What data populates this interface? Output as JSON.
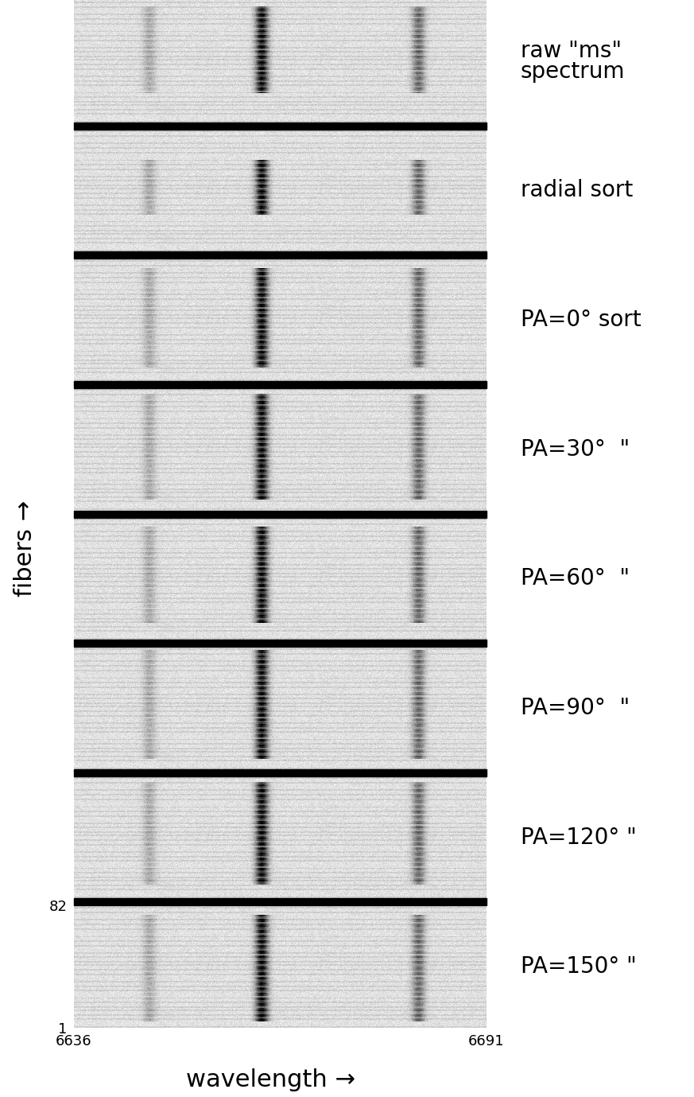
{
  "chart_data": {
    "type": "image_stack",
    "x_label": "wavelength →",
    "y_label": "fibers →",
    "xlim": [
      6636,
      6691
    ],
    "xticks": [
      6636,
      6691
    ],
    "ylim": [
      1,
      82
    ],
    "yticks": [
      1,
      82
    ],
    "lines": [
      {
        "wavelength": 6646,
        "strength": 0.25
      },
      {
        "wavelength": 6661,
        "strength": 1.0
      },
      {
        "wavelength": 6682,
        "strength": 0.55
      }
    ],
    "panels": [
      {
        "label": "raw \"ms\"\nspectrum",
        "emission_fibers": [
          20,
          78
        ]
      },
      {
        "label": "radial sort",
        "emission_fibers": [
          25,
          62
        ]
      },
      {
        "label": "PA=0° sort",
        "emission_fibers": [
          10,
          76
        ]
      },
      {
        "label": "PA=30°  \"",
        "emission_fibers": [
          8,
          78
        ]
      },
      {
        "label": "PA=60°  \"",
        "emission_fibers": [
          12,
          76
        ]
      },
      {
        "label": "PA=90°  \"",
        "emission_fibers": [
          8,
          80
        ]
      },
      {
        "label": "PA=120° \"",
        "emission_fibers": [
          10,
          78
        ]
      },
      {
        "label": "PA=150° \"",
        "emission_fibers": [
          5,
          76
        ]
      }
    ]
  }
}
